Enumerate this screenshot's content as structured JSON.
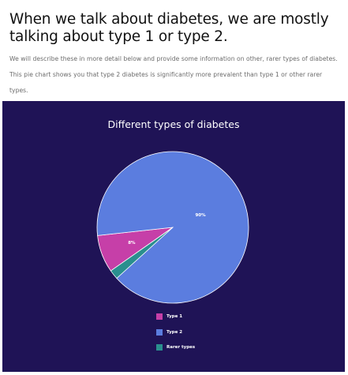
{
  "heading": "When we talk about diabetes, we are mostly talking about type 1 or type 2.",
  "intro": "We will describe these in more detail below and provide some information on other, rarer types of diabetes. This pie chart shows you that type 2 diabetes is significantly more prevalent than type 1 or other rarer types.",
  "chart_data": {
    "type": "pie",
    "title": "Different types of diabetes",
    "legend_position": "bottom",
    "start_angle_deg": 145,
    "slices": [
      {
        "label": "Type 1",
        "value": 8,
        "value_label": "8%",
        "color": "#c63fa8"
      },
      {
        "label": "Type 2",
        "value": 90,
        "value_label": "90%",
        "color": "#5b7ddf"
      },
      {
        "label": "Rarer types",
        "value": 2,
        "value_label": "",
        "color": "#2a8f8e"
      }
    ]
  },
  "colors": {
    "panel_background": "#1f1356",
    "heading": "#111111",
    "intro": "#6b6b6b"
  }
}
